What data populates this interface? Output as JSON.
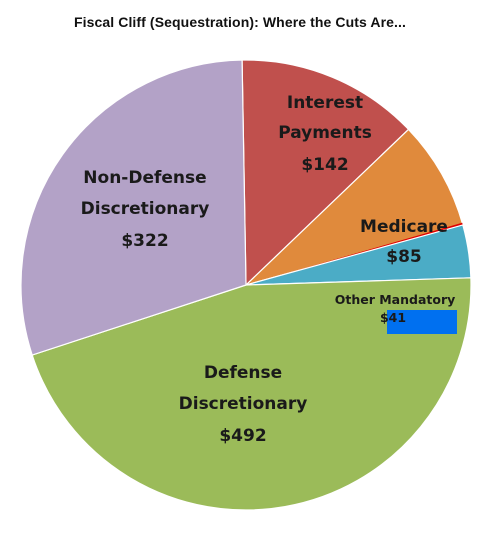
{
  "chart_data": {
    "type": "pie",
    "title": "Fiscal Cliff (Sequestration): Where the Cuts Are...",
    "categories": [
      "Interest Payments",
      "Medicare",
      "Other Mandatory",
      "Defense Discretionary",
      "Non-Defense Discretionary"
    ],
    "values": [
      142,
      85,
      41,
      492,
      322
    ],
    "value_labels": [
      "$142",
      "$85",
      "$41",
      "$492",
      "$322"
    ],
    "colors": [
      "#c0504d",
      "#e08a3c",
      "#4bacc6",
      "#9bbb59",
      "#b3a2c7"
    ],
    "highlight_color": "#0070f0",
    "sliver_color": "#e00000",
    "legend": "none",
    "grid": false
  }
}
